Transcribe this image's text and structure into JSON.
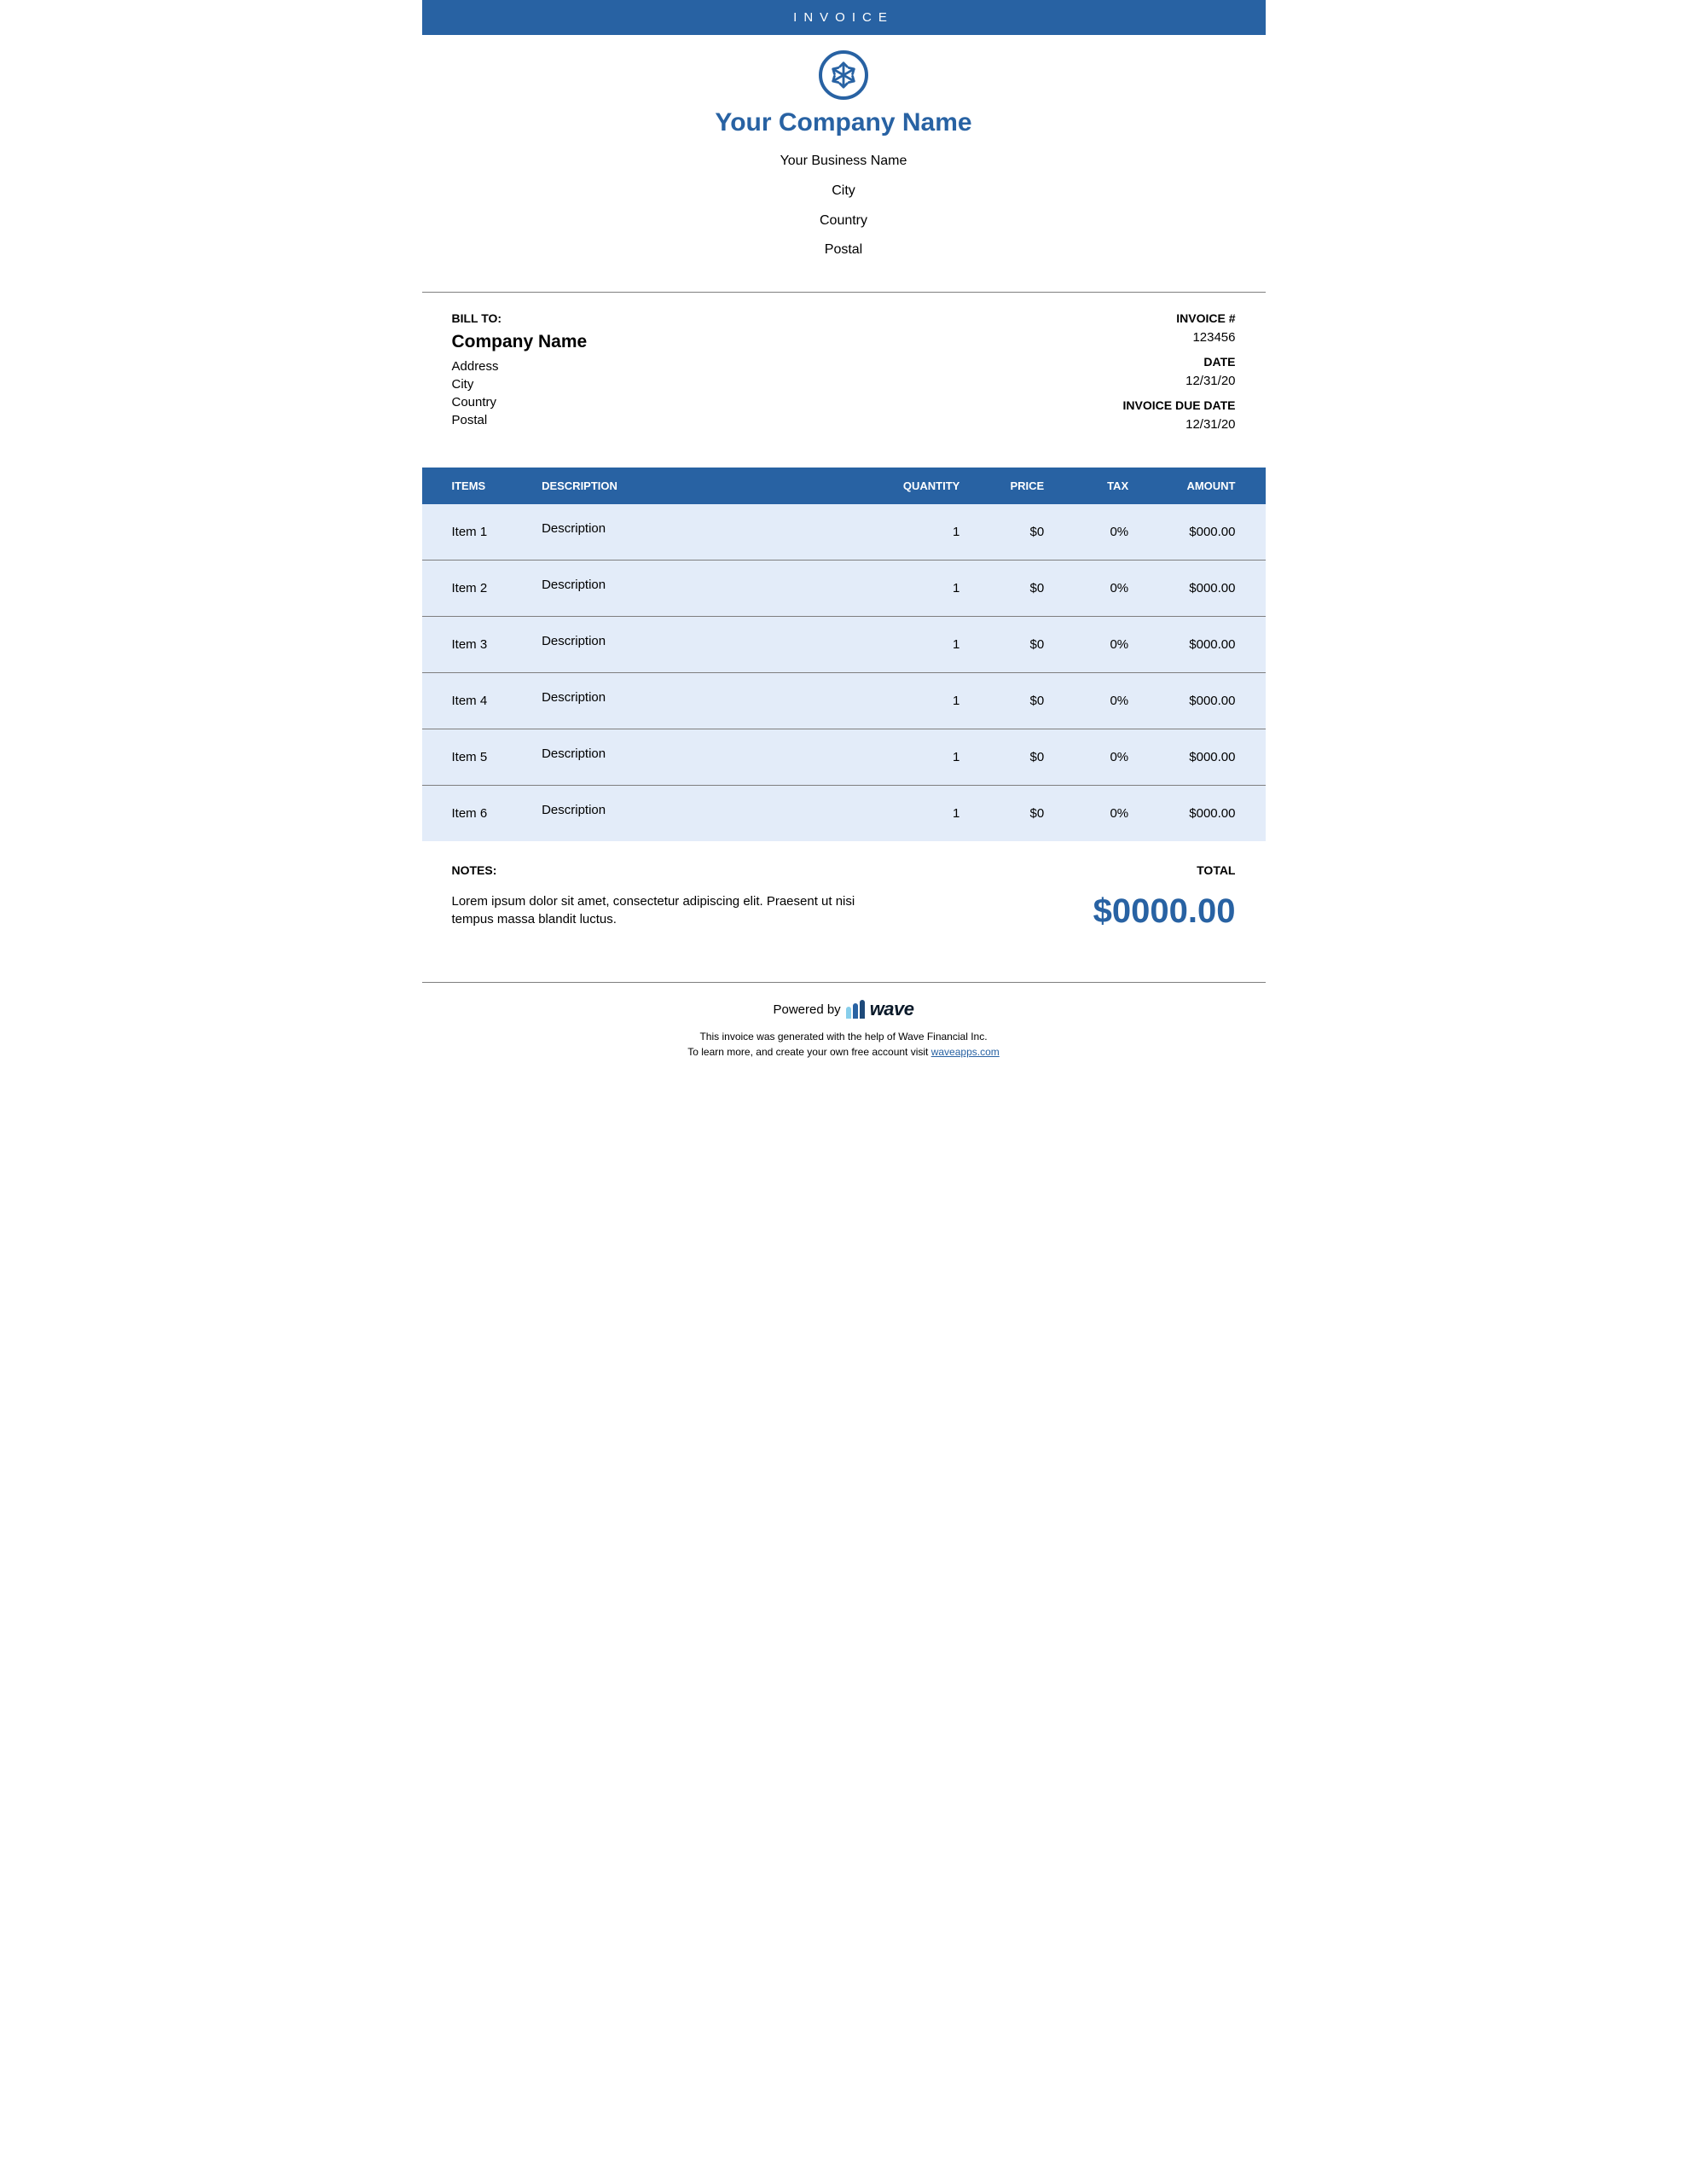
{
  "header": {
    "title": "INVOICE"
  },
  "company": {
    "name": "Your Company Name",
    "business_name": "Your Business Name",
    "city": "City",
    "country": "Country",
    "postal": "Postal"
  },
  "bill_to": {
    "label": "BILL TO:",
    "company": "Company Name",
    "address": "Address",
    "city": "City",
    "country": "Country",
    "postal": "Postal"
  },
  "invoice_meta": {
    "number_label": "INVOICE #",
    "number": "123456",
    "date_label": "DATE",
    "date": "12/31/20",
    "due_label": "INVOICE DUE DATE",
    "due": "12/31/20"
  },
  "table": {
    "headers": {
      "items": "ITEMS",
      "description": "DESCRIPTION",
      "quantity": "QUANTITY",
      "price": "PRICE",
      "tax": "TAX",
      "amount": "AMOUNT"
    },
    "rows": [
      {
        "item": "Item 1",
        "description": "Description",
        "quantity": "1",
        "price": "$0",
        "tax": "0%",
        "amount": "$000.00"
      },
      {
        "item": "Item 2",
        "description": "Description",
        "quantity": "1",
        "price": "$0",
        "tax": "0%",
        "amount": "$000.00"
      },
      {
        "item": "Item 3",
        "description": "Description",
        "quantity": "1",
        "price": "$0",
        "tax": "0%",
        "amount": "$000.00"
      },
      {
        "item": "Item 4",
        "description": "Description",
        "quantity": "1",
        "price": "$0",
        "tax": "0%",
        "amount": "$000.00"
      },
      {
        "item": "Item 5",
        "description": "Description",
        "quantity": "1",
        "price": "$0",
        "tax": "0%",
        "amount": "$000.00"
      },
      {
        "item": "Item 6",
        "description": "Description",
        "quantity": "1",
        "price": "$0",
        "tax": "0%",
        "amount": "$000.00"
      }
    ]
  },
  "notes": {
    "label": "NOTES:",
    "text": "Lorem ipsum dolor sit amet, consectetur adipiscing elit. Praesent ut nisi tempus massa blandit luctus."
  },
  "total": {
    "label": "TOTAL",
    "amount": "$0000.00"
  },
  "powered": {
    "prefix": "Powered by",
    "brand": "wave",
    "line1": "This invoice was generated with the help of Wave Financial Inc.",
    "line2_a": "To learn more, and create your own free account visit ",
    "line2_link": "waveapps.com"
  },
  "colors": {
    "brand": "#2862a3",
    "row_bg": "#e3ecf9",
    "divider": "#7f7f7f"
  }
}
